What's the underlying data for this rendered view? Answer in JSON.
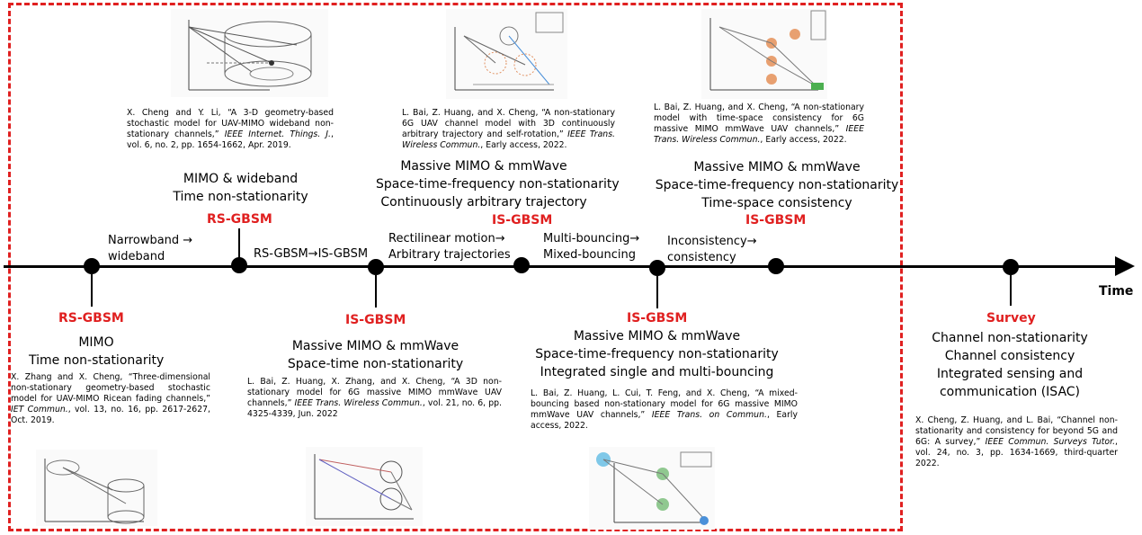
{
  "axis_label": "Time",
  "milestones": [
    {
      "type": "RS-GBSM",
      "features": [
        "MIMO",
        "Time non-stationarity"
      ],
      "reference": {
        "pre": "X. Zhang and X. Cheng, “Three-dimensional non-stationary geometry-based stochastic model for UAV-MIMO Ricean fading channels,” ",
        "venue": "IET Commun.",
        "post": ", vol. 13, no. 16, pp. 2617-2627, Oct. 2019."
      }
    },
    {
      "type": "RS-GBSM",
      "features": [
        "MIMO & wideband",
        "Time non-stationarity"
      ],
      "reference": {
        "pre": "X. Cheng and Y. Li, “A 3-D geometry-based stochastic model for UAV-MIMO wideband non-stationary channels,” ",
        "venue": "IEEE Internet. Things. J.",
        "post": ", vol. 6, no. 2, pp. 1654-1662, Apr. 2019."
      }
    },
    {
      "type": "IS-GBSM",
      "features": [
        "Massive MIMO & mmWave",
        "Space-time non-stationarity"
      ],
      "reference": {
        "pre": "L. Bai, Z. Huang, X. Zhang, and X. Cheng, “A 3D non-stationary model for 6G massive MIMO mmWave UAV channels,” ",
        "venue": "IEEE Trans. Wireless Commun.",
        "post": ", vol. 21, no. 6, pp. 4325-4339, Jun. 2022"
      }
    },
    {
      "type": "IS-GBSM",
      "features": [
        "Massive MIMO & mmWave",
        "Space-time-frequency non-stationarity",
        "Continuously arbitrary trajectory"
      ],
      "reference": {
        "pre": "L. Bai, Z. Huang, and X. Cheng, “A non-stationary 6G UAV channel model with 3D continuously arbitrary trajectory and self-rotation,” ",
        "venue": "IEEE Trans. Wireless Commun.",
        "post": ", Early access, 2022."
      }
    },
    {
      "type": "IS-GBSM",
      "features": [
        "Massive MIMO & mmWave",
        "Space-time-frequency non-stationarity",
        "Integrated single and multi-bouncing"
      ],
      "reference": {
        "pre": "L. Bai, Z. Huang, L. Cui, T. Feng, and X. Cheng, “A mixed-bouncing based non-stationary model for 6G massive MIMO mmWave UAV channels,” ",
        "venue": "IEEE Trans. on Commun.",
        "post": ", Early access, 2022."
      }
    },
    {
      "type": "IS-GBSM",
      "features": [
        "Massive MIMO & mmWave",
        "Space-time-frequency non-stationarity",
        "Time-space consistency"
      ],
      "reference": {
        "pre": "L. Bai, Z. Huang, and X. Cheng, “A non-stationary model with time-space consistency for 6G massive MIMO mmWave UAV channels,” ",
        "venue": "IEEE Trans. Wireless Commun.",
        "post": ", Early access, 2022."
      }
    },
    {
      "type": "Survey",
      "features": [
        "Channel non-stationarity",
        "Channel consistency",
        "Integrated sensing and",
        "communication (ISAC)"
      ],
      "reference": {
        "pre": "X. Cheng, Z. Huang, and L. Bai, “Channel non-stationarity and consistency for beyond 5G and 6G: A survey,” ",
        "venue": "IEEE Commun. Surveys Tutor.",
        "post": ", vol. 24, no. 3, pp. 1634-1669, third-quarter 2022."
      }
    }
  ],
  "transitions": [
    {
      "line1": "Narrowband →",
      "line2": "wideband"
    },
    {
      "line1": "RS-GBSM→IS-GBSM",
      "line2": ""
    },
    {
      "line1": "Rectilinear motion→",
      "line2": "Arbitrary trajectories"
    },
    {
      "line1": "Multi-bouncing→",
      "line2": "Mixed-bouncing"
    },
    {
      "line1": "Inconsistency→",
      "line2": "consistency"
    }
  ],
  "colors": {
    "accent": "#e02020",
    "axis": "#000000",
    "frame": "#e02020"
  }
}
